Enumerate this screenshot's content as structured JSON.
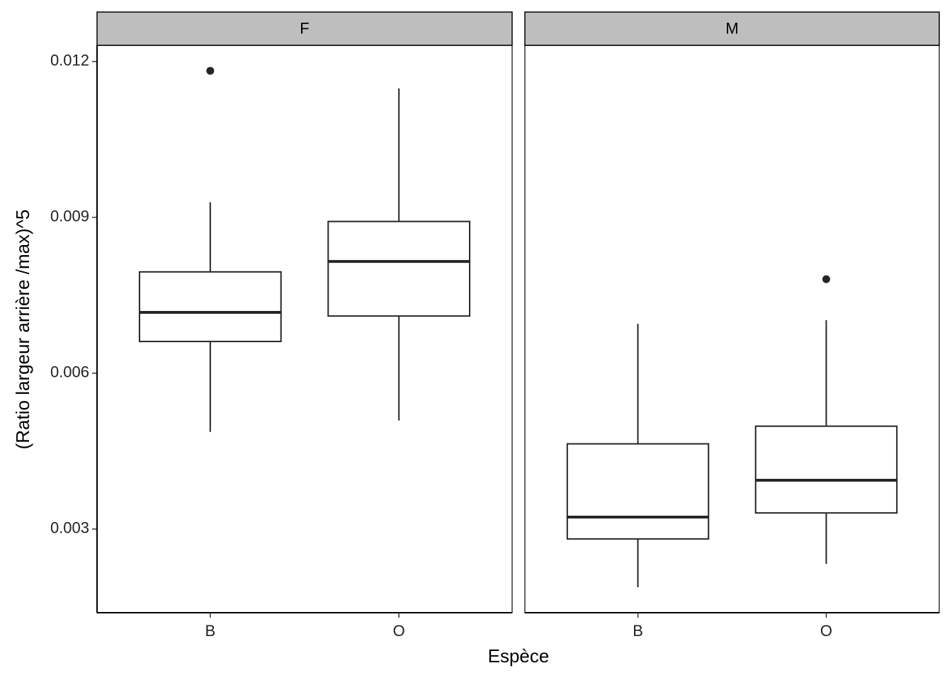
{
  "chart_data": {
    "type": "boxplot",
    "x_label": "Espèce",
    "y_label": "(Ratio largeur arrière /max)^5",
    "ylim": [
      0.00139,
      0.01231
    ],
    "yticks": [
      0.003,
      0.006,
      0.009,
      0.012
    ],
    "color": "#262626",
    "panels": [
      {
        "title": "F",
        "categories": [
          "B",
          "O"
        ],
        "boxes": [
          {
            "whislo": 0.00487,
            "q1": 0.00661,
            "med": 0.00717,
            "q3": 0.00795,
            "whishi": 0.00929,
            "fliers": [
              0.01182
            ]
          },
          {
            "whislo": 0.00509,
            "q1": 0.0071,
            "med": 0.00815,
            "q3": 0.00892,
            "whishi": 0.01148,
            "fliers": []
          }
        ]
      },
      {
        "title": "M",
        "categories": [
          "B",
          "O"
        ],
        "boxes": [
          {
            "whislo": 0.00188,
            "q1": 0.00281,
            "med": 0.00323,
            "q3": 0.00464,
            "whishi": 0.00695,
            "fliers": []
          },
          {
            "whislo": 0.00233,
            "q1": 0.00331,
            "med": 0.00394,
            "q3": 0.00498,
            "whishi": 0.00702,
            "fliers": [
              0.00781
            ]
          }
        ]
      }
    ]
  }
}
